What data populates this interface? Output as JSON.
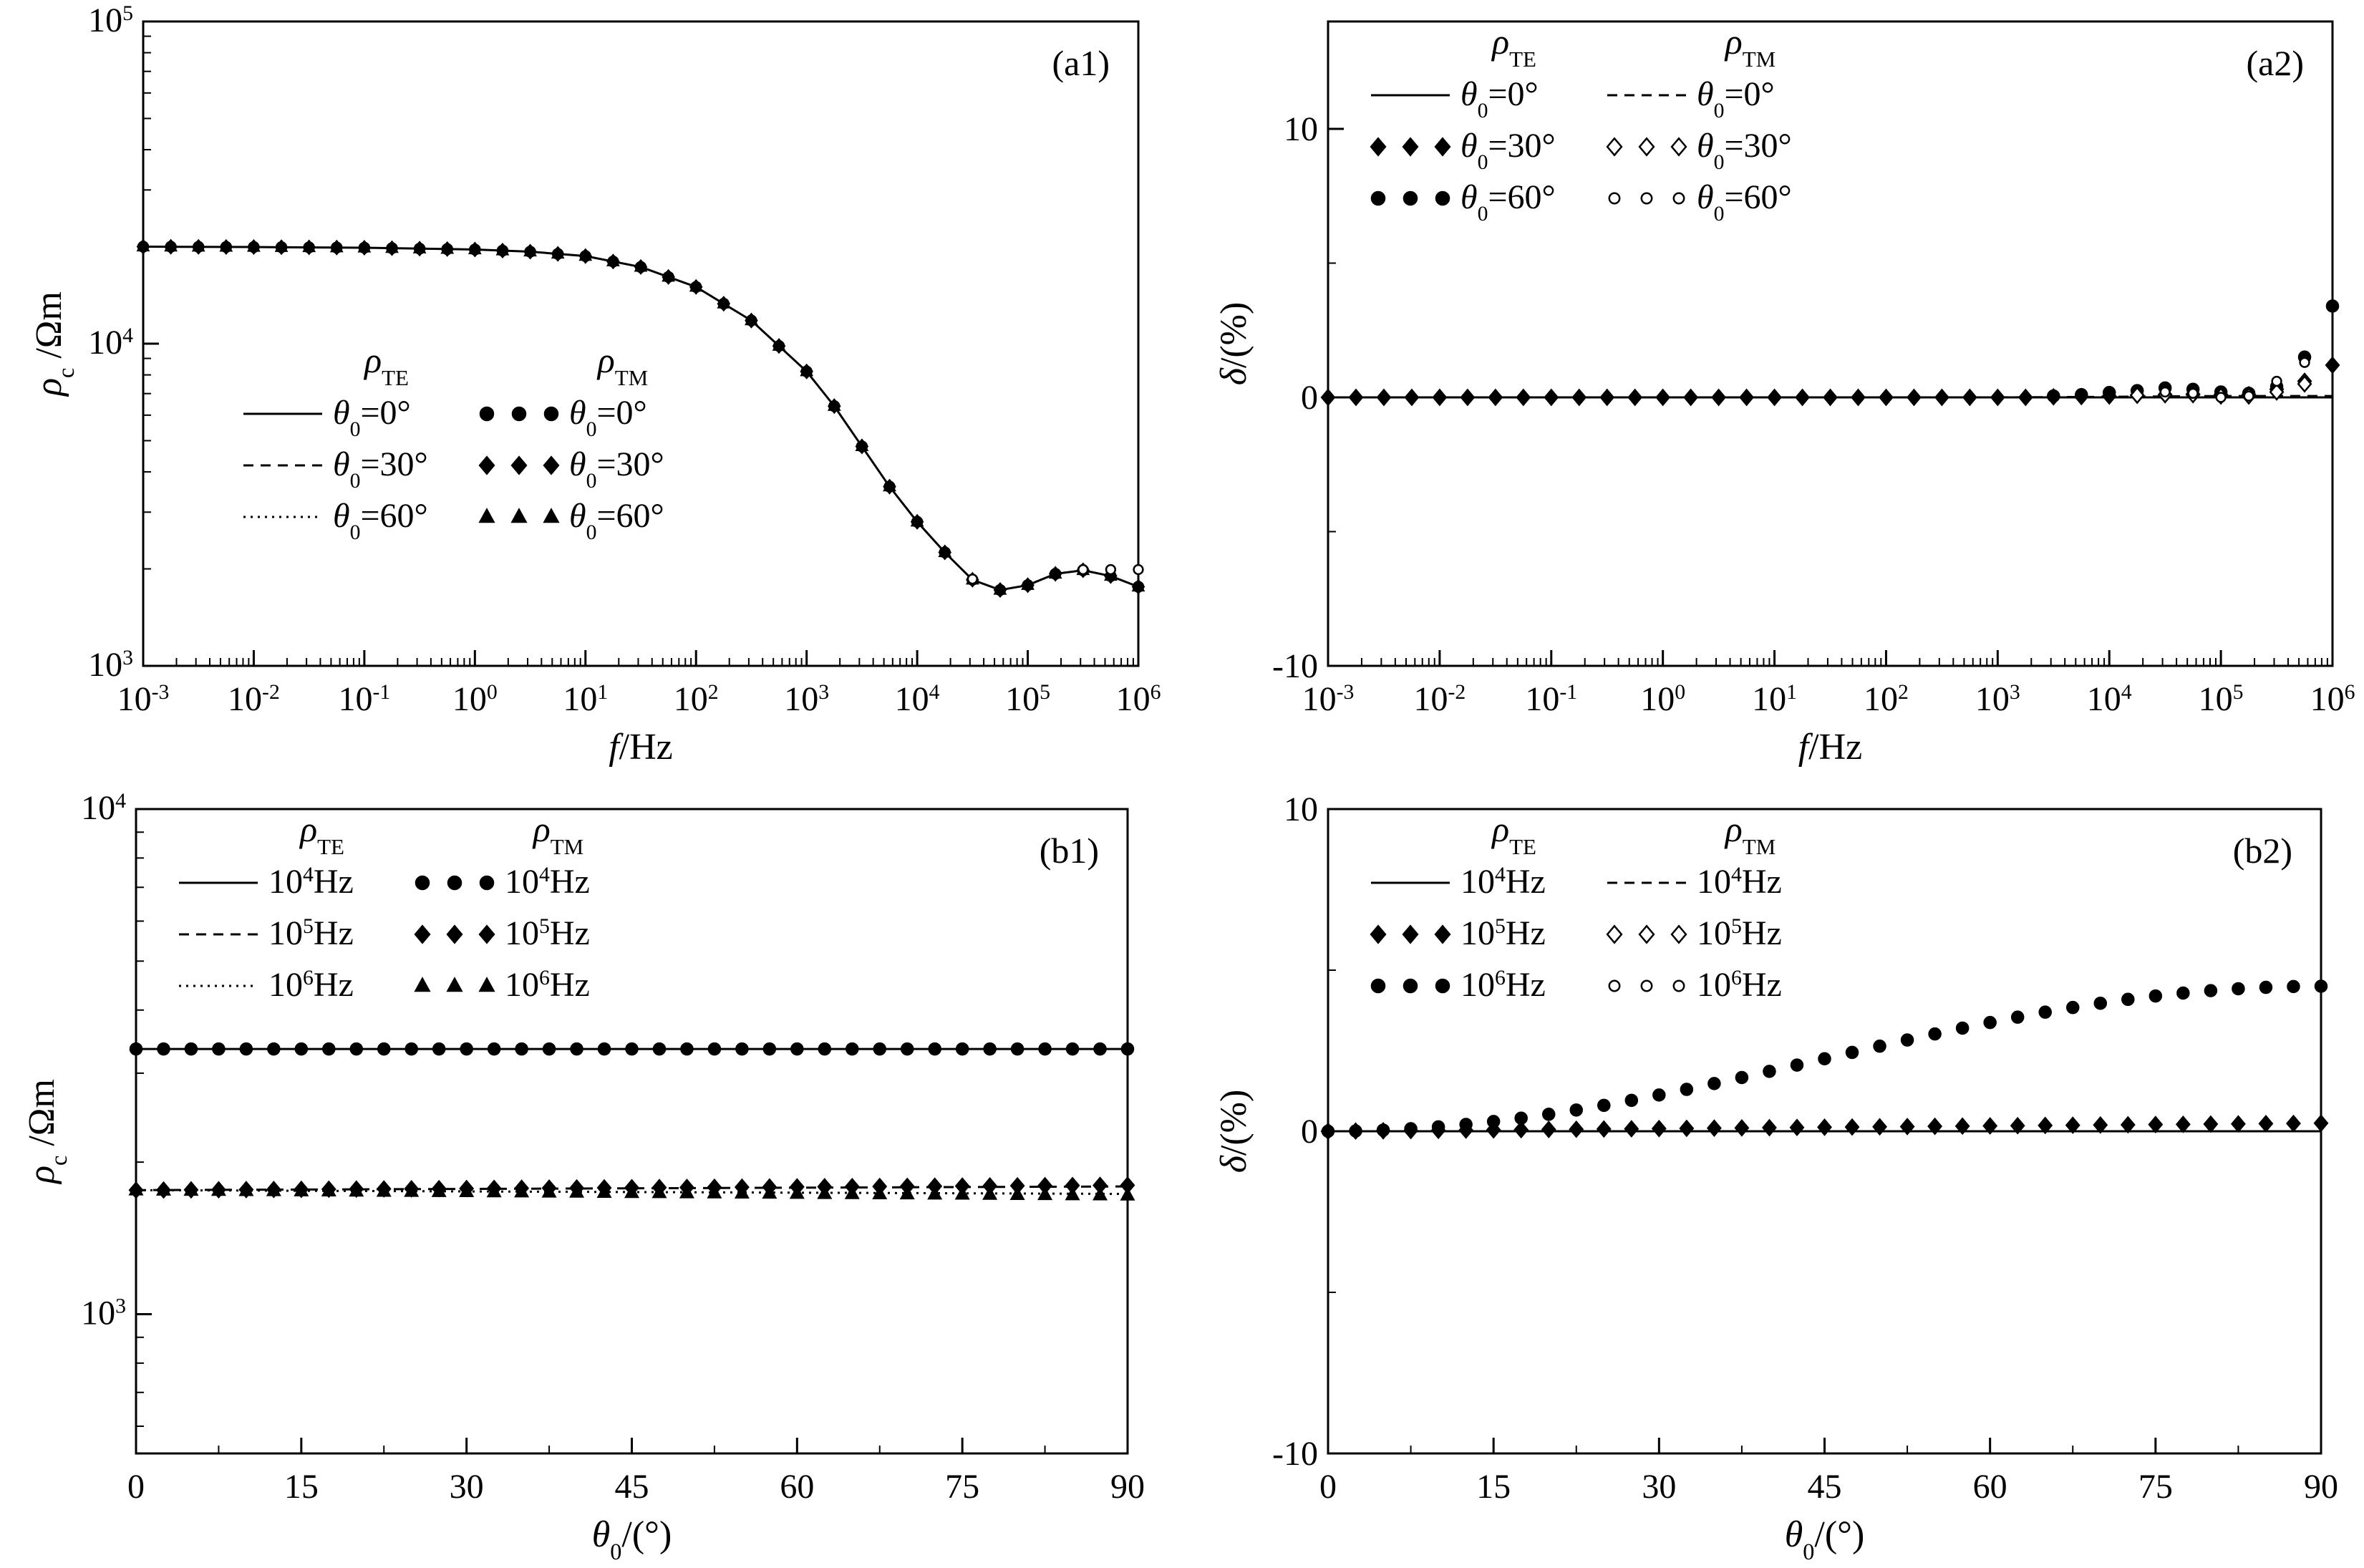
{
  "chart_data": [
    {
      "type": "line",
      "panel_label": "(a1)",
      "xlabel": "f",
      "xlabel_unit": "/Hz",
      "ylabel": "ρ",
      "ylabel_sub": "c",
      "ylabel_unit": " /Ωm",
      "x_scale": "log",
      "y_scale": "log",
      "xlim": [
        0.001,
        1000000
      ],
      "ylim": [
        1000,
        100000
      ],
      "x_ticks": [
        {
          "base": "10",
          "exp": "-3"
        },
        {
          "base": "10",
          "exp": "-2"
        },
        {
          "base": "10",
          "exp": "-1"
        },
        {
          "base": "10",
          "exp": "0"
        },
        {
          "base": "10",
          "exp": "1"
        },
        {
          "base": "10",
          "exp": "2"
        },
        {
          "base": "10",
          "exp": "3"
        },
        {
          "base": "10",
          "exp": "4"
        },
        {
          "base": "10",
          "exp": "5"
        },
        {
          "base": "10",
          "exp": "6"
        }
      ],
      "y_ticks": [
        {
          "base": "10",
          "exp": "3"
        },
        {
          "base": "10",
          "exp": "4"
        },
        {
          "base": "10",
          "exp": "5"
        }
      ],
      "legend": {
        "header_te": {
          "sym": "ρ",
          "sub": "TE"
        },
        "header_tm": {
          "sym": "ρ",
          "sub": "TM"
        },
        "te": [
          {
            "style": "solid",
            "label": {
              "theta": "θ",
              "sub": "0",
              "rest": "=0°"
            }
          },
          {
            "style": "dashed",
            "label": {
              "theta": "θ",
              "sub": "0",
              "rest": "=30°"
            }
          },
          {
            "style": "dotted",
            "label": {
              "theta": "θ",
              "sub": "0",
              "rest": "=60°"
            }
          }
        ],
        "tm": [
          {
            "marker": "circle-filled",
            "label": {
              "theta": "θ",
              "sub": "0",
              "rest": "=0°"
            }
          },
          {
            "marker": "diamond-filled",
            "label": {
              "theta": "θ",
              "sub": "0",
              "rest": "=30°"
            }
          },
          {
            "marker": "triangle-filled",
            "label": {
              "theta": "θ",
              "sub": "0",
              "rest": "=60°"
            }
          }
        ]
      },
      "curve_logx": [
        -3,
        -2,
        -1,
        0,
        0.5,
        1,
        1.5,
        2,
        2.5,
        3,
        3.25,
        3.5,
        3.75,
        4,
        4.25,
        4.5,
        4.75,
        5,
        5.25,
        5.5,
        5.75,
        6
      ],
      "curve_y": [
        20000,
        19950,
        19850,
        19600,
        19300,
        18700,
        17300,
        15000,
        11800,
        8200,
        6400,
        4800,
        3600,
        2800,
        2250,
        1850,
        1720,
        1780,
        1930,
        1980,
        1900,
        1760
      ],
      "markers": [
        {
          "series": "TM θ0=0°",
          "marker": "circle-filled",
          "step": 0.25,
          "y_offset": []
        },
        {
          "series": "TM θ0=30°",
          "marker": "diamond-filled",
          "step": 0.25,
          "y_offset": []
        },
        {
          "series": "TM θ0=60°",
          "marker": "triangle-filled",
          "step": 0.25,
          "y_offset": []
        }
      ],
      "open_markers": [
        {
          "logx": [
            4.5,
            5.5,
            5.75,
            6
          ],
          "y": [
            1860,
            1990,
            1990,
            1990
          ]
        }
      ]
    },
    {
      "type": "line",
      "panel_label": "(a2)",
      "xlabel": "f",
      "xlabel_unit": "/Hz",
      "ylabel": "δ",
      "ylabel_unit": "/(%)",
      "x_scale": "log",
      "y_scale": "linear",
      "xlim": [
        0.001,
        1000000
      ],
      "ylim": [
        -10,
        14
      ],
      "x_ticks": [
        {
          "base": "10",
          "exp": "-3"
        },
        {
          "base": "10",
          "exp": "-2"
        },
        {
          "base": "10",
          "exp": "-1"
        },
        {
          "base": "10",
          "exp": "0"
        },
        {
          "base": "10",
          "exp": "1"
        },
        {
          "base": "10",
          "exp": "2"
        },
        {
          "base": "10",
          "exp": "3"
        },
        {
          "base": "10",
          "exp": "4"
        },
        {
          "base": "10",
          "exp": "5"
        },
        {
          "base": "10",
          "exp": "6"
        }
      ],
      "y_ticks": [
        "-10",
        "0",
        "10"
      ],
      "legend": {
        "header_te": {
          "sym": "ρ",
          "sub": "TE"
        },
        "header_tm": {
          "sym": "ρ",
          "sub": "TM"
        },
        "te": [
          {
            "style": "solid",
            "label": {
              "theta": "θ",
              "sub": "0",
              "rest": "=0°"
            }
          },
          {
            "marker": "diamond-filled",
            "label": {
              "theta": "θ",
              "sub": "0",
              "rest": "=30°"
            }
          },
          {
            "marker": "circle-filled",
            "label": {
              "theta": "θ",
              "sub": "0",
              "rest": "=60°"
            }
          }
        ],
        "tm": [
          {
            "style": "dashed",
            "label": {
              "theta": "θ",
              "sub": "0",
              "rest": "=0°"
            }
          },
          {
            "marker": "diamond-open",
            "label": {
              "theta": "θ",
              "sub": "0",
              "rest": "=30°"
            }
          },
          {
            "marker": "circle-open",
            "label": {
              "theta": "θ",
              "sub": "0",
              "rest": "=60°"
            }
          }
        ]
      },
      "series_lines": [
        {
          "name": "TE θ0=0°",
          "style": "solid",
          "logx": [
            -3,
            6
          ],
          "y": [
            0,
            0
          ]
        },
        {
          "name": "TM θ0=0°",
          "style": "dashed",
          "logx": [
            -3,
            3,
            4,
            5,
            5.5,
            6
          ],
          "y": [
            0,
            0,
            0.02,
            0.05,
            0.05,
            0.05
          ]
        }
      ],
      "marker_series": [
        {
          "name": "TE θ0=30°",
          "marker": "diamond-filled",
          "logx": [
            -3,
            -2.75,
            -2.5,
            -2.25,
            -2,
            -1.75,
            -1.5,
            -1.25,
            -1,
            -0.75,
            -0.5,
            -0.25,
            0,
            0.25,
            0.5,
            0.75,
            1,
            1.25,
            1.5,
            1.75,
            2,
            2.25,
            2.5,
            2.75,
            3,
            3.25,
            3.5,
            3.75,
            4,
            4.25,
            4.5,
            4.75,
            5,
            5.25,
            5.5,
            5.75,
            6
          ],
          "y": [
            0,
            0,
            0,
            0,
            0,
            0,
            0,
            0,
            0,
            0,
            0,
            0,
            0,
            0,
            0,
            0,
            0,
            0,
            0,
            0,
            0,
            0,
            0,
            0,
            0,
            0,
            0.02,
            0.03,
            0.05,
            0.08,
            0.1,
            0.12,
            0.1,
            0.1,
            0.3,
            0.6,
            1.2
          ]
        },
        {
          "name": "TE θ0=60°",
          "marker": "circle-filled",
          "logx": [
            3.5,
            3.75,
            4,
            4.25,
            4.5,
            4.75,
            5,
            5.25,
            5.5,
            5.75,
            6
          ],
          "y": [
            0.05,
            0.1,
            0.18,
            0.25,
            0.35,
            0.3,
            0.2,
            0.15,
            0.4,
            1.5,
            3.4
          ]
        },
        {
          "name": "TM θ0=30°",
          "marker": "diamond-open",
          "logx": [
            4.25,
            4.5,
            4.75,
            5,
            5.25,
            5.5,
            5.75
          ],
          "y": [
            0.08,
            0.1,
            0.1,
            0.05,
            0.05,
            0.2,
            0.5
          ]
        },
        {
          "name": "TM θ0=60°",
          "marker": "circle-open",
          "logx": [
            4.5,
            4.75,
            5,
            5.25,
            5.5,
            5.75
          ],
          "y": [
            0.2,
            0.15,
            0,
            0.05,
            0.6,
            1.3
          ]
        }
      ]
    },
    {
      "type": "line",
      "panel_label": "(b1)",
      "xlabel": "θ",
      "xlabel_sub": "0",
      "xlabel_unit": "/(°)",
      "ylabel": "ρ",
      "ylabel_sub": "c",
      "ylabel_unit": " /Ωm",
      "x_scale": "linear",
      "y_scale": "log",
      "xlim": [
        0,
        90
      ],
      "ylim": [
        530,
        10000
      ],
      "x_ticks": [
        "0",
        "15",
        "30",
        "45",
        "60",
        "75",
        "90"
      ],
      "y_ticks": [
        {
          "base": "10",
          "exp": "3",
          "value": 1000
        },
        {
          "base": "10",
          "exp": "4",
          "value": 10000
        }
      ],
      "legend": {
        "header_te": {
          "sym": "ρ",
          "sub": "TE"
        },
        "header_tm": {
          "sym": "ρ",
          "sub": "TM"
        },
        "te": [
          {
            "style": "solid",
            "label": {
              "pre": "10",
              "sup": "4",
              "rest": "Hz"
            }
          },
          {
            "style": "dashed",
            "label": {
              "pre": "10",
              "sup": "5",
              "rest": "Hz"
            }
          },
          {
            "style": "dotted",
            "label": {
              "pre": "10",
              "sup": "6",
              "rest": "Hz"
            }
          }
        ],
        "tm": [
          {
            "marker": "circle-filled",
            "label": {
              "pre": "10",
              "sup": "4",
              "rest": "Hz"
            }
          },
          {
            "marker": "diamond-filled",
            "label": {
              "pre": "10",
              "sup": "5",
              "rest": "Hz"
            }
          },
          {
            "marker": "triangle-filled",
            "label": {
              "pre": "10",
              "sup": "6",
              "rest": "Hz"
            }
          }
        ]
      },
      "series_lines": [
        {
          "name": "TE 10^4Hz",
          "style": "solid",
          "x": [
            0,
            90
          ],
          "y": [
            3350,
            3350
          ]
        },
        {
          "name": "TE 10^5Hz",
          "style": "dashed",
          "x": [
            0,
            90
          ],
          "y": [
            1760,
            1790
          ]
        },
        {
          "name": "TE 10^6Hz",
          "style": "dotted",
          "x": [
            0,
            90
          ],
          "y": [
            1760,
            1730
          ]
        }
      ],
      "marker_series": [
        {
          "name": "TM 10^4Hz",
          "marker": "circle-filled",
          "x_step": 2.5,
          "y_start": 3350,
          "y_end": 3350
        },
        {
          "name": "TM 10^5Hz",
          "marker": "diamond-filled",
          "x_step": 2.5,
          "y_start": 1760,
          "y_end": 1800
        },
        {
          "name": "TM 10^6Hz",
          "marker": "triangle-filled",
          "x_step": 2.5,
          "y_start": 1760,
          "y_end": 1720
        }
      ]
    },
    {
      "type": "line",
      "panel_label": "(b2)",
      "xlabel": "θ",
      "xlabel_sub": "0",
      "xlabel_unit": "/(°)",
      "ylabel": "δ",
      "ylabel_unit": "/(%)",
      "x_scale": "linear",
      "y_scale": "linear",
      "xlim": [
        0,
        90
      ],
      "ylim": [
        -10,
        10
      ],
      "x_ticks": [
        "0",
        "15",
        "30",
        "45",
        "60",
        "75",
        "90"
      ],
      "y_ticks": [
        "-10",
        "0",
        "10"
      ],
      "legend": {
        "header_te": {
          "sym": "ρ",
          "sub": "TE"
        },
        "header_tm": {
          "sym": "ρ",
          "sub": "TM"
        },
        "te": [
          {
            "style": "solid",
            "label": {
              "pre": "10",
              "sup": "4",
              "rest": "Hz"
            }
          },
          {
            "marker": "diamond-filled",
            "label": {
              "pre": "10",
              "sup": "5",
              "rest": "Hz"
            }
          },
          {
            "marker": "circle-filled",
            "label": {
              "pre": "10",
              "sup": "6",
              "rest": "Hz"
            }
          }
        ],
        "tm": [
          {
            "style": "dashed",
            "label": {
              "pre": "10",
              "sup": "4",
              "rest": "Hz"
            }
          },
          {
            "marker": "diamond-open",
            "label": {
              "pre": "10",
              "sup": "5",
              "rest": "Hz"
            }
          },
          {
            "marker": "circle-open",
            "label": {
              "pre": "10",
              "sup": "6",
              "rest": "Hz"
            }
          }
        ]
      },
      "series_lines": [
        {
          "name": "TE 10^4Hz",
          "style": "solid",
          "x": [
            0,
            90
          ],
          "y": [
            0,
            0
          ]
        },
        {
          "name": "TM 10^4Hz",
          "style": "dashed",
          "x": [
            0,
            90
          ],
          "y": [
            0,
            0
          ]
        }
      ],
      "marker_series": [
        {
          "name": "TE 10^5Hz",
          "marker": "diamond-filled",
          "x_step": 2.5,
          "curve": "flat",
          "amplitude": 0.25
        },
        {
          "name": "TE 10^6Hz",
          "marker": "circle-filled",
          "x_step": 2.5,
          "curve": "sin2",
          "amplitude": 4.5
        }
      ]
    }
  ]
}
